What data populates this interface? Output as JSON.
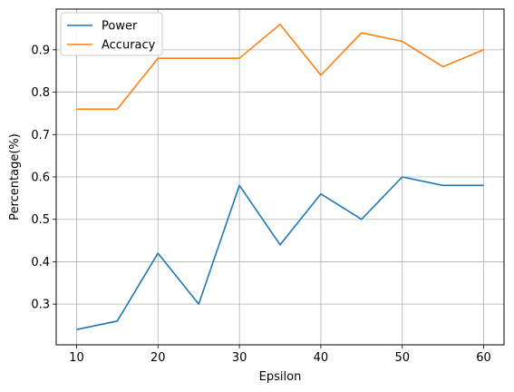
{
  "chart_data": {
    "type": "line",
    "x": [
      10,
      15,
      20,
      25,
      30,
      35,
      40,
      45,
      50,
      55,
      60
    ],
    "series": [
      {
        "name": "Power",
        "color": "#1f77b4",
        "values": [
          0.24,
          0.26,
          0.42,
          0.3,
          0.58,
          0.44,
          0.56,
          0.5,
          0.6,
          0.58,
          0.58
        ]
      },
      {
        "name": "Accuracy",
        "color": "#ff7f0e",
        "values": [
          0.76,
          0.76,
          0.88,
          0.88,
          0.88,
          0.96,
          0.84,
          0.94,
          0.92,
          0.86,
          0.9
        ]
      }
    ],
    "xlabel": "Epsilon",
    "ylabel": "Percentage(%)",
    "xlim": [
      7.5,
      62.5
    ],
    "ylim": [
      0.204,
      0.996
    ],
    "xticks": [
      10,
      20,
      30,
      40,
      50,
      60
    ],
    "yticks": [
      0.3,
      0.4,
      0.5,
      0.6,
      0.7,
      0.8,
      0.9
    ],
    "grid": true,
    "legend_position": "top-left"
  }
}
